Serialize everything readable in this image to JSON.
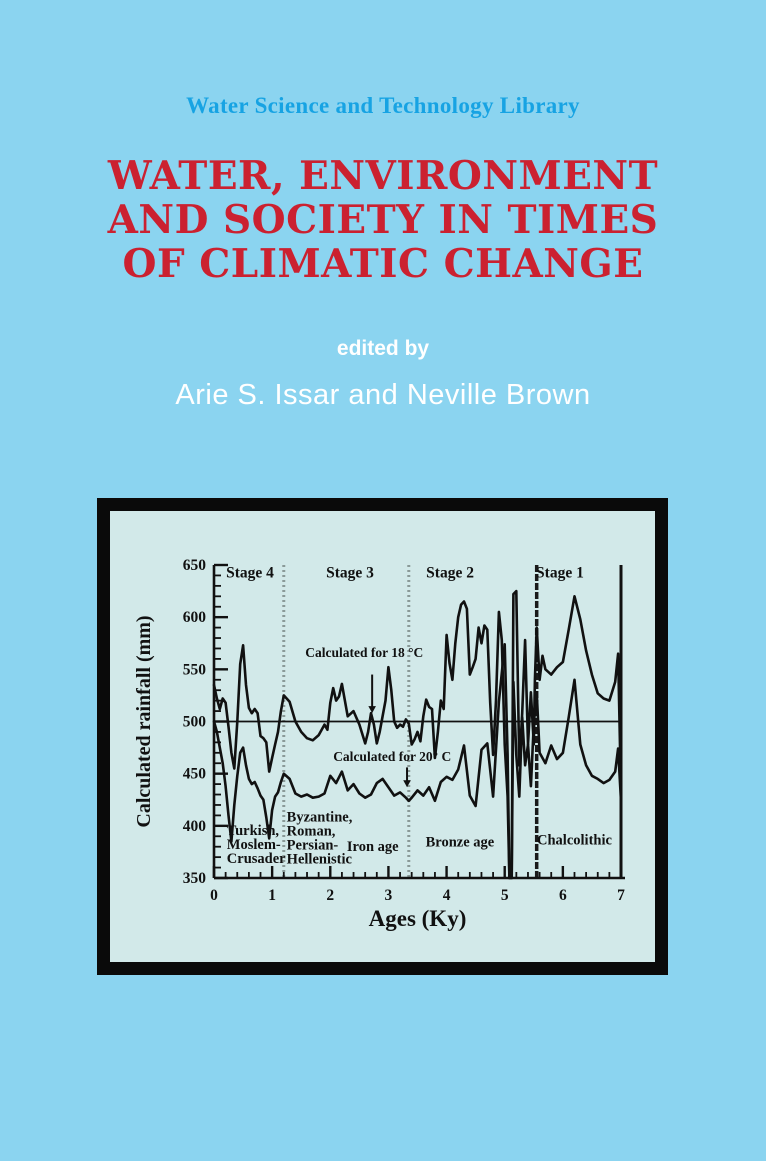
{
  "cover": {
    "series_title": "Water Science and Technology Library",
    "title_lines": [
      "WATER, ENVIRONMENT",
      "AND SOCIETY IN TIMES",
      "OF CLIMATIC CHANGE"
    ],
    "edited_by": "edited by",
    "authors": "Arie S. Issar and Neville Brown",
    "colors": {
      "background": "#8BD4F0",
      "series_title": "#17A3E3",
      "title_red": "#CB2130",
      "text_white": "#FFFFFF",
      "frame_black": "#0A0A0A",
      "panel": "#D2E9E9",
      "ink": "#111111",
      "dotted_boundary": "#8A9A98"
    }
  },
  "chart_data": {
    "type": "line",
    "xlabel": "Ages  (Ky)",
    "ylabel": "Calculated rainfall  (mm)",
    "xlim": [
      0,
      7
    ],
    "ylim": [
      350,
      650
    ],
    "x_major_ticks": [
      0,
      1,
      2,
      3,
      4,
      5,
      6,
      7
    ],
    "y_major_ticks": [
      350,
      400,
      450,
      500,
      550,
      600,
      650
    ],
    "x_minor_step": 0.2,
    "y_minor_step": 10,
    "reference_line_y": 500,
    "right_edge_line_x": 7,
    "grid": "off",
    "legend_position": "none",
    "stage_boundaries": [
      {
        "x": 1.2,
        "style": "dotted"
      },
      {
        "x": 3.35,
        "style": "dotted"
      },
      {
        "x": 5.55,
        "style": "solid"
      }
    ],
    "stage_labels": [
      {
        "label": "Stage 4",
        "x": 0.62,
        "y": 638
      },
      {
        "label": "Stage 3",
        "x": 2.34,
        "y": 638
      },
      {
        "label": "Stage 2",
        "x": 4.06,
        "y": 638
      },
      {
        "label": "Stage 1",
        "x": 5.95,
        "y": 638
      }
    ],
    "period_labels": [
      {
        "lines": [
          "Turkish,",
          "Moslem-",
          "Crusader"
        ],
        "x": 0.22,
        "y": 391,
        "anchor": "start"
      },
      {
        "lines": [
          "Byzantine,",
          "Roman,",
          "Persian-",
          "Hellenistic"
        ],
        "x": 1.25,
        "y": 404,
        "anchor": "start"
      },
      {
        "lines": [
          "Iron age"
        ],
        "x": 2.73,
        "y": 376,
        "anchor": "middle"
      },
      {
        "lines": [
          "Bronze age"
        ],
        "x": 4.23,
        "y": 380,
        "anchor": "middle"
      },
      {
        "lines": [
          "Chalcolithic"
        ],
        "x": 6.2,
        "y": 382,
        "anchor": "middle"
      }
    ],
    "annotations": [
      {
        "label": "Calculated for 18 °C",
        "text_x": 1.57,
        "text_y": 562,
        "arrow_x": 2.72,
        "arrow_from": 545,
        "arrow_to": 508
      },
      {
        "label": "Calculated for 20° C",
        "text_x": 2.05,
        "text_y": 462,
        "arrow_x": 3.32,
        "arrow_from": 456,
        "arrow_to": 437
      }
    ],
    "series": [
      {
        "name": "Calculated for 18 °C",
        "points": [
          [
            0.0,
            535
          ],
          [
            0.05,
            522
          ],
          [
            0.1,
            512
          ],
          [
            0.15,
            522
          ],
          [
            0.2,
            518
          ],
          [
            0.25,
            495
          ],
          [
            0.3,
            470
          ],
          [
            0.35,
            455
          ],
          [
            0.4,
            500
          ],
          [
            0.45,
            555
          ],
          [
            0.5,
            573
          ],
          [
            0.55,
            535
          ],
          [
            0.6,
            513
          ],
          [
            0.65,
            508
          ],
          [
            0.7,
            512
          ],
          [
            0.75,
            508
          ],
          [
            0.8,
            486
          ],
          [
            0.85,
            484
          ],
          [
            0.9,
            480
          ],
          [
            0.95,
            452
          ],
          [
            1.0,
            465
          ],
          [
            1.05,
            478
          ],
          [
            1.1,
            490
          ],
          [
            1.15,
            510
          ],
          [
            1.2,
            525
          ],
          [
            1.3,
            519
          ],
          [
            1.4,
            500
          ],
          [
            1.5,
            490
          ],
          [
            1.6,
            484
          ],
          [
            1.7,
            482
          ],
          [
            1.8,
            487
          ],
          [
            1.9,
            497
          ],
          [
            1.95,
            492
          ],
          [
            2.0,
            518
          ],
          [
            2.05,
            532
          ],
          [
            2.1,
            520
          ],
          [
            2.15,
            524
          ],
          [
            2.2,
            536
          ],
          [
            2.3,
            505
          ],
          [
            2.4,
            510
          ],
          [
            2.5,
            497
          ],
          [
            2.6,
            479
          ],
          [
            2.65,
            490
          ],
          [
            2.7,
            508
          ],
          [
            2.75,
            497
          ],
          [
            2.8,
            479
          ],
          [
            2.85,
            490
          ],
          [
            2.9,
            505
          ],
          [
            2.95,
            520
          ],
          [
            3.0,
            552
          ],
          [
            3.05,
            530
          ],
          [
            3.1,
            500
          ],
          [
            3.15,
            494
          ],
          [
            3.2,
            497
          ],
          [
            3.25,
            495
          ],
          [
            3.3,
            502
          ],
          [
            3.35,
            498
          ],
          [
            3.4,
            478
          ],
          [
            3.45,
            483
          ],
          [
            3.5,
            490
          ],
          [
            3.55,
            481
          ],
          [
            3.6,
            505
          ],
          [
            3.65,
            521
          ],
          [
            3.7,
            514
          ],
          [
            3.75,
            512
          ],
          [
            3.8,
            465
          ],
          [
            3.85,
            490
          ],
          [
            3.9,
            520
          ],
          [
            3.95,
            512
          ],
          [
            4.0,
            583
          ],
          [
            4.05,
            556
          ],
          [
            4.1,
            540
          ],
          [
            4.15,
            575
          ],
          [
            4.2,
            600
          ],
          [
            4.25,
            612
          ],
          [
            4.3,
            615
          ],
          [
            4.35,
            608
          ],
          [
            4.4,
            545
          ],
          [
            4.45,
            552
          ],
          [
            4.5,
            560
          ],
          [
            4.55,
            590
          ],
          [
            4.6,
            575
          ],
          [
            4.65,
            592
          ],
          [
            4.7,
            588
          ],
          [
            4.75,
            518
          ],
          [
            4.8,
            468
          ],
          [
            4.85,
            520
          ],
          [
            4.9,
            605
          ],
          [
            4.95,
            578
          ],
          [
            5.0,
            478
          ],
          [
            5.05,
            428
          ],
          [
            5.08,
            350
          ],
          [
            5.12,
            350
          ],
          [
            5.15,
            622
          ],
          [
            5.2,
            625
          ],
          [
            5.25,
            458
          ],
          [
            5.3,
            508
          ],
          [
            5.35,
            578
          ],
          [
            5.4,
            478
          ],
          [
            5.45,
            528
          ],
          [
            5.5,
            478
          ],
          [
            5.52,
            540
          ],
          [
            5.55,
            590
          ],
          [
            5.6,
            540
          ],
          [
            5.65,
            563
          ],
          [
            5.7,
            550
          ],
          [
            5.8,
            545
          ],
          [
            5.9,
            552
          ],
          [
            6.0,
            557
          ],
          [
            6.1,
            588
          ],
          [
            6.2,
            620
          ],
          [
            6.3,
            598
          ],
          [
            6.4,
            568
          ],
          [
            6.5,
            545
          ],
          [
            6.6,
            527
          ],
          [
            6.7,
            522
          ],
          [
            6.8,
            520
          ],
          [
            6.9,
            538
          ],
          [
            6.95,
            565
          ],
          [
            7.0,
            430
          ]
        ]
      },
      {
        "name": "Calculated for 20° C",
        "points": [
          [
            0.0,
            500
          ],
          [
            0.05,
            490
          ],
          [
            0.1,
            475
          ],
          [
            0.15,
            460
          ],
          [
            0.2,
            438
          ],
          [
            0.25,
            410
          ],
          [
            0.3,
            385
          ],
          [
            0.35,
            420
          ],
          [
            0.4,
            448
          ],
          [
            0.45,
            470
          ],
          [
            0.5,
            475
          ],
          [
            0.55,
            458
          ],
          [
            0.6,
            445
          ],
          [
            0.65,
            440
          ],
          [
            0.7,
            442
          ],
          [
            0.75,
            436
          ],
          [
            0.8,
            429
          ],
          [
            0.85,
            425
          ],
          [
            0.9,
            408
          ],
          [
            0.95,
            388
          ],
          [
            1.0,
            415
          ],
          [
            1.05,
            428
          ],
          [
            1.1,
            432
          ],
          [
            1.15,
            442
          ],
          [
            1.2,
            450
          ],
          [
            1.3,
            445
          ],
          [
            1.4,
            431
          ],
          [
            1.5,
            428
          ],
          [
            1.6,
            430
          ],
          [
            1.7,
            427
          ],
          [
            1.8,
            428
          ],
          [
            1.9,
            431
          ],
          [
            2.0,
            448
          ],
          [
            2.1,
            441
          ],
          [
            2.2,
            452
          ],
          [
            2.3,
            434
          ],
          [
            2.4,
            440
          ],
          [
            2.5,
            431
          ],
          [
            2.6,
            427
          ],
          [
            2.7,
            430
          ],
          [
            2.8,
            441
          ],
          [
            2.9,
            445
          ],
          [
            3.0,
            437
          ],
          [
            3.1,
            429
          ],
          [
            3.2,
            432
          ],
          [
            3.3,
            427
          ],
          [
            3.35,
            424
          ],
          [
            3.4,
            427
          ],
          [
            3.5,
            434
          ],
          [
            3.6,
            429
          ],
          [
            3.7,
            437
          ],
          [
            3.8,
            424
          ],
          [
            3.9,
            442
          ],
          [
            4.0,
            447
          ],
          [
            4.1,
            444
          ],
          [
            4.2,
            454
          ],
          [
            4.3,
            477
          ],
          [
            4.4,
            429
          ],
          [
            4.5,
            419
          ],
          [
            4.6,
            473
          ],
          [
            4.7,
            479
          ],
          [
            4.8,
            428
          ],
          [
            4.9,
            519
          ],
          [
            5.0,
            574
          ],
          [
            5.05,
            468
          ],
          [
            5.08,
            350
          ],
          [
            5.12,
            350
          ],
          [
            5.15,
            538
          ],
          [
            5.2,
            468
          ],
          [
            5.25,
            428
          ],
          [
            5.3,
            504
          ],
          [
            5.35,
            458
          ],
          [
            5.4,
            478
          ],
          [
            5.45,
            438
          ],
          [
            5.5,
            498
          ],
          [
            5.55,
            528
          ],
          [
            5.6,
            470
          ],
          [
            5.7,
            460
          ],
          [
            5.8,
            477
          ],
          [
            5.9,
            464
          ],
          [
            6.0,
            470
          ],
          [
            6.1,
            504
          ],
          [
            6.2,
            540
          ],
          [
            6.3,
            478
          ],
          [
            6.4,
            458
          ],
          [
            6.5,
            448
          ],
          [
            6.6,
            445
          ],
          [
            6.7,
            441
          ],
          [
            6.8,
            444
          ],
          [
            6.9,
            452
          ],
          [
            6.95,
            474
          ],
          [
            7.0,
            424
          ]
        ]
      }
    ]
  }
}
